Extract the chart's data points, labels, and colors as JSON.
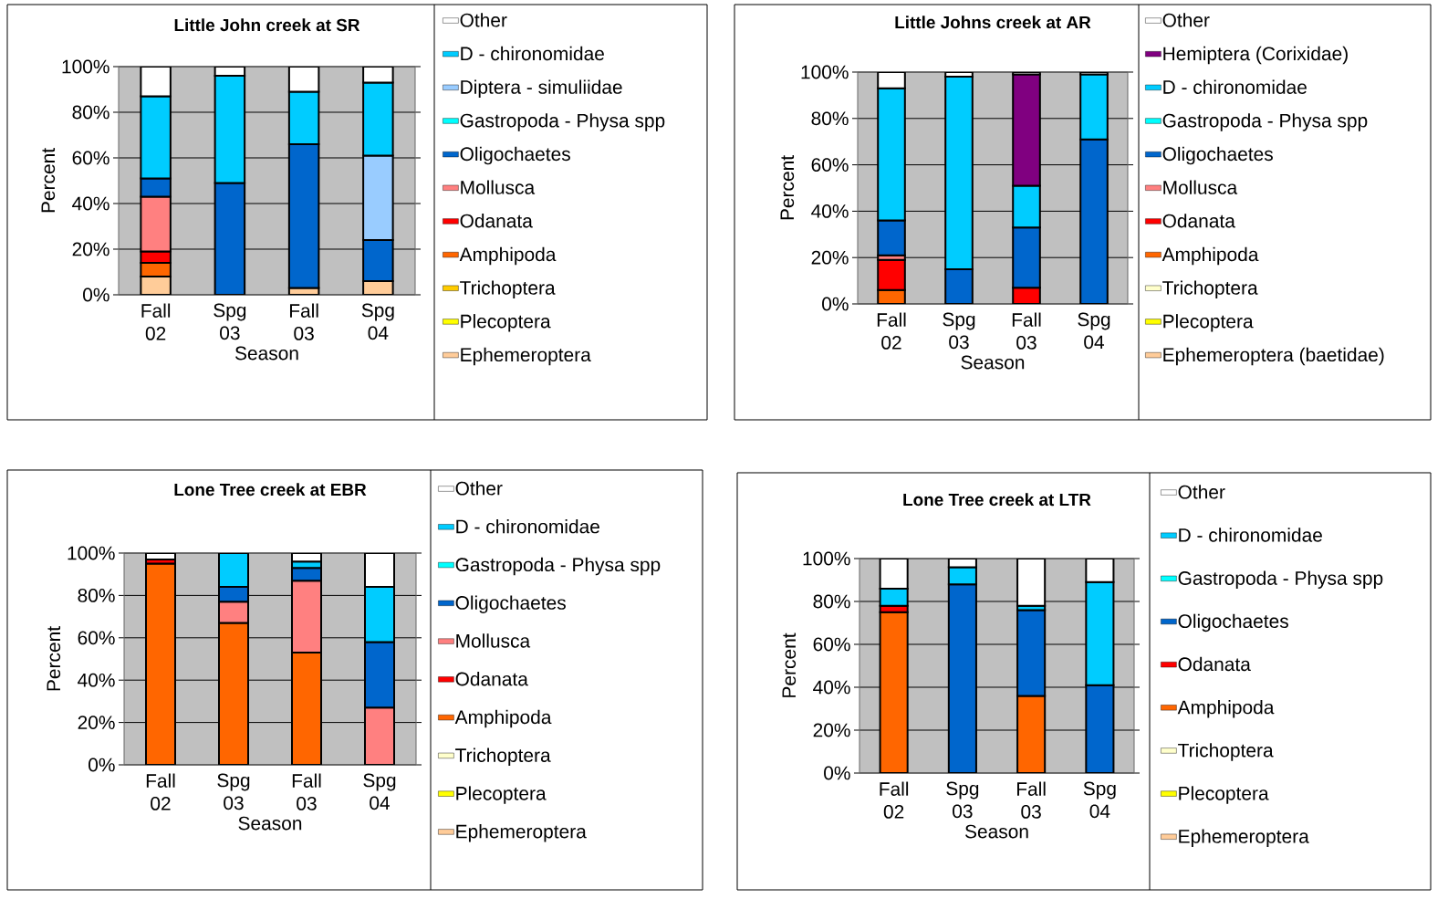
{
  "chart_data": [
    {
      "type": "bar",
      "stacked": true,
      "title": "Little John creek at SR",
      "xlabel": "Season",
      "ylabel": "Percent",
      "categories": [
        "Fall 02",
        "Spg 03",
        "Fall 03",
        "Spg 04"
      ],
      "ylim": [
        0,
        100
      ],
      "yticks": [
        {
          "value": 0,
          "label": "0%"
        },
        {
          "value": 20,
          "label": "20%"
        },
        {
          "value": 40,
          "label": "40%"
        },
        {
          "value": 60,
          "label": "60%"
        },
        {
          "value": 80,
          "label": "80%"
        },
        {
          "value": 100,
          "label": "100%"
        }
      ],
      "grid": "y",
      "legend": "right",
      "series": [
        {
          "name": "Ephemeroptera",
          "color": "#ffcc99",
          "values": [
            8,
            null,
            3,
            6
          ]
        },
        {
          "name": "Plecoptera",
          "color": "#ffff00",
          "values": [
            null,
            null,
            null,
            null
          ]
        },
        {
          "name": "Trichoptera",
          "color": "#ffcc00",
          "values": [
            null,
            null,
            null,
            null
          ]
        },
        {
          "name": "Amphipoda",
          "color": "#ff6600",
          "values": [
            6,
            null,
            null,
            null
          ]
        },
        {
          "name": "Odanata",
          "color": "#ff0000",
          "values": [
            5,
            null,
            null,
            null
          ]
        },
        {
          "name": "Mollusca",
          "color": "#ff8080",
          "values": [
            24,
            null,
            null,
            null
          ]
        },
        {
          "name": "Oligochaetes",
          "color": "#0066cc",
          "values": [
            8,
            49,
            63,
            18
          ]
        },
        {
          "name": "Gastropoda - Physa spp",
          "color": "#00ffff",
          "values": [
            null,
            null,
            null,
            null
          ]
        },
        {
          "name": "Diptera - simuliidae",
          "color": "#99ccff",
          "values": [
            null,
            null,
            null,
            37
          ]
        },
        {
          "name": "D - chironomidae",
          "color": "#00ccff",
          "values": [
            36,
            47,
            23,
            32
          ]
        },
        {
          "name": "Other",
          "color": "#ffffff",
          "values": [
            13,
            4,
            11,
            7
          ]
        }
      ]
    },
    {
      "type": "bar",
      "stacked": true,
      "title": "Little Johns creek at AR",
      "xlabel": "Season",
      "ylabel": "Percent",
      "categories": [
        "Fall 02",
        "Spg 03",
        "Fall 03",
        "Spg 04"
      ],
      "ylim": [
        0,
        100
      ],
      "yticks": [
        {
          "value": 0,
          "label": "0%"
        },
        {
          "value": 20,
          "label": "20%"
        },
        {
          "value": 40,
          "label": "40%"
        },
        {
          "value": 60,
          "label": "60%"
        },
        {
          "value": 80,
          "label": "80%"
        },
        {
          "value": 100,
          "label": "100%"
        }
      ],
      "grid": "y",
      "legend": "right",
      "series": [
        {
          "name": "Ephemeroptera (baetidae)",
          "color": "#ffcc99",
          "values": [
            null,
            null,
            null,
            null
          ]
        },
        {
          "name": "Plecoptera",
          "color": "#ffff00",
          "values": [
            null,
            null,
            null,
            null
          ]
        },
        {
          "name": "Trichoptera",
          "color": "#ffffcc",
          "values": [
            null,
            null,
            null,
            null
          ]
        },
        {
          "name": "Amphipoda",
          "color": "#ff6600",
          "values": [
            6,
            null,
            null,
            null
          ]
        },
        {
          "name": "Odanata",
          "color": "#ff0000",
          "values": [
            13,
            null,
            7,
            null
          ]
        },
        {
          "name": "Mollusca",
          "color": "#ff8080",
          "values": [
            2,
            null,
            null,
            null
          ]
        },
        {
          "name": "Oligochaetes",
          "color": "#0066cc",
          "values": [
            15,
            15,
            26,
            71
          ]
        },
        {
          "name": "Gastropoda - Physa spp",
          "color": "#00ffff",
          "values": [
            null,
            null,
            null,
            null
          ]
        },
        {
          "name": "D - chironomidae",
          "color": "#00ccff",
          "values": [
            57,
            83,
            18,
            28
          ]
        },
        {
          "name": "Hemiptera (Corixidae)",
          "color": "#800080",
          "values": [
            null,
            null,
            48,
            null
          ]
        },
        {
          "name": "Other",
          "color": "#ffffff",
          "values": [
            7,
            2,
            1,
            1
          ]
        }
      ]
    },
    {
      "type": "bar",
      "stacked": true,
      "title": "Lone Tree creek at EBR",
      "xlabel": "Season",
      "ylabel": "Percent",
      "categories": [
        "Fall 02",
        "Spg 03",
        "Fall 03",
        "Spg 04"
      ],
      "ylim": [
        0,
        100
      ],
      "yticks": [
        {
          "value": 0,
          "label": "0%"
        },
        {
          "value": 20,
          "label": "20%"
        },
        {
          "value": 40,
          "label": "40%"
        },
        {
          "value": 60,
          "label": "60%"
        },
        {
          "value": 80,
          "label": "80%"
        },
        {
          "value": 100,
          "label": "100%"
        }
      ],
      "grid": "y",
      "legend": "right",
      "series": [
        {
          "name": "Ephemeroptera",
          "color": "#ffcc99",
          "values": [
            null,
            null,
            null,
            null
          ]
        },
        {
          "name": "Plecoptera",
          "color": "#ffff00",
          "values": [
            null,
            null,
            null,
            null
          ]
        },
        {
          "name": "Trichoptera",
          "color": "#ffffcc",
          "values": [
            null,
            null,
            null,
            null
          ]
        },
        {
          "name": "Amphipoda",
          "color": "#ff6600",
          "values": [
            95,
            67,
            53,
            null
          ]
        },
        {
          "name": "Odanata",
          "color": "#ff0000",
          "values": [
            2,
            null,
            null,
            null
          ]
        },
        {
          "name": "Mollusca",
          "color": "#ff8080",
          "values": [
            null,
            10,
            34,
            27
          ]
        },
        {
          "name": "Oligochaetes",
          "color": "#0066cc",
          "values": [
            null,
            7,
            6,
            31
          ]
        },
        {
          "name": "Gastropoda - Physa spp",
          "color": "#00ffff",
          "values": [
            null,
            null,
            null,
            null
          ]
        },
        {
          "name": "D - chironomidae",
          "color": "#00ccff",
          "values": [
            null,
            16,
            3,
            26
          ]
        },
        {
          "name": "Other",
          "color": "#ffffff",
          "values": [
            3,
            null,
            4,
            16
          ]
        }
      ]
    },
    {
      "type": "bar",
      "stacked": true,
      "title": "Lone Tree creek at LTR",
      "xlabel": "Season",
      "ylabel": "Percent",
      "categories": [
        "Fall 02",
        "Spg 03",
        "Fall 03",
        "Spg 04"
      ],
      "ylim": [
        0,
        100
      ],
      "yticks": [
        {
          "value": 0,
          "label": "0%"
        },
        {
          "value": 20,
          "label": "20%"
        },
        {
          "value": 40,
          "label": "40%"
        },
        {
          "value": 60,
          "label": "60%"
        },
        {
          "value": 80,
          "label": "80%"
        },
        {
          "value": 100,
          "label": "100%"
        }
      ],
      "grid": "y",
      "legend": "right",
      "series": [
        {
          "name": "Ephemeroptera",
          "color": "#ffcc99",
          "values": [
            null,
            null,
            null,
            null
          ]
        },
        {
          "name": "Plecoptera",
          "color": "#ffff00",
          "values": [
            null,
            null,
            null,
            null
          ]
        },
        {
          "name": "Trichoptera",
          "color": "#ffffcc",
          "values": [
            null,
            null,
            null,
            null
          ]
        },
        {
          "name": "Amphipoda",
          "color": "#ff6600",
          "values": [
            75,
            null,
            36,
            null
          ]
        },
        {
          "name": "Odanata",
          "color": "#ff0000",
          "values": [
            3,
            null,
            null,
            null
          ]
        },
        {
          "name": "Oligochaetes",
          "color": "#0066cc",
          "values": [
            null,
            88,
            40,
            41
          ]
        },
        {
          "name": "Gastropoda - Physa spp",
          "color": "#00ffff",
          "values": [
            null,
            null,
            null,
            null
          ]
        },
        {
          "name": "D - chironomidae",
          "color": "#00ccff",
          "values": [
            8,
            8,
            2,
            48
          ]
        },
        {
          "name": "Other",
          "color": "#ffffff",
          "values": [
            14,
            4,
            22,
            11
          ]
        }
      ]
    }
  ]
}
